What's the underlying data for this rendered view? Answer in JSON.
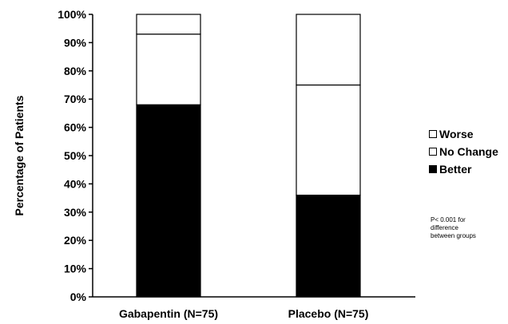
{
  "chart_data": {
    "type": "bar",
    "stacked": true,
    "categories": [
      "Gabapentin (N=75)",
      "Placebo (N=75)"
    ],
    "series": [
      {
        "name": "Better",
        "values": [
          68,
          36
        ],
        "color": "#000000"
      },
      {
        "name": "No Change",
        "values": [
          25,
          39
        ],
        "color": "#ffffff"
      },
      {
        "name": "Worse",
        "values": [
          7,
          25
        ],
        "color": "#ffffff"
      }
    ],
    "ylabel": "Percentage of Patients",
    "xlabel": "",
    "ylim": [
      0,
      100
    ],
    "yticks": [
      "0%",
      "10%",
      "20%",
      "30%",
      "40%",
      "50%",
      "60%",
      "70%",
      "80%",
      "90%",
      "100%"
    ],
    "legend_position": "right",
    "annotation": "P< 0.001 for difference between groups"
  }
}
